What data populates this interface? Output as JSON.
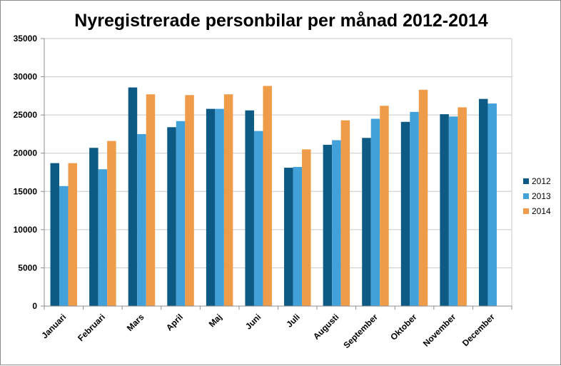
{
  "chart_data": {
    "type": "bar",
    "title": "Nyregistrerade personbilar per månad 2012-2014",
    "categories": [
      "Januari",
      "Februari",
      "Mars",
      "April",
      "Maj",
      "Juni",
      "Juli",
      "Augusti",
      "September",
      "Oktober",
      "November",
      "December"
    ],
    "series": [
      {
        "name": "2012",
        "color": "#0d5a84",
        "values": [
          18700,
          20700,
          28600,
          23400,
          25800,
          25600,
          18100,
          21100,
          22000,
          24100,
          25100,
          27100
        ]
      },
      {
        "name": "2013",
        "color": "#43a1d9",
        "values": [
          15700,
          17900,
          22500,
          24200,
          25800,
          22900,
          18200,
          21700,
          24500,
          25400,
          24800,
          26500
        ]
      },
      {
        "name": "2014",
        "color": "#ee9c4a",
        "values": [
          18700,
          21600,
          27700,
          27600,
          27700,
          28800,
          20500,
          24300,
          26200,
          28300,
          26000,
          null
        ]
      }
    ],
    "ylim": [
      0,
      35000
    ],
    "yticks": [
      0,
      5000,
      10000,
      15000,
      20000,
      25000,
      30000,
      35000
    ],
    "grid": true,
    "legend": "right"
  }
}
